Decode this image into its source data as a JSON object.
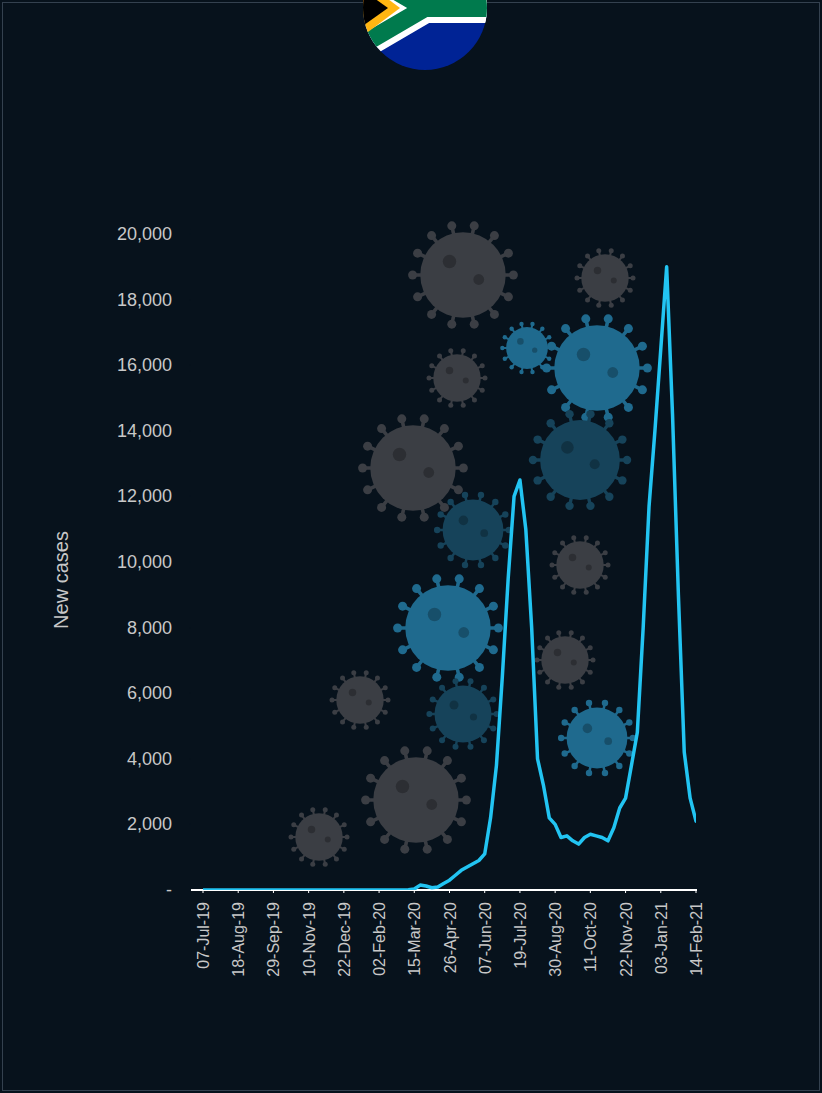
{
  "chart_data": {
    "type": "line",
    "y_label": "New cases",
    "color": "#22c4f2",
    "x": [
      "2019-07-07",
      "2020-03-01",
      "2020-03-08",
      "2020-03-15",
      "2020-03-22",
      "2020-03-29",
      "2020-04-05",
      "2020-04-12",
      "2020-04-19",
      "2020-04-26",
      "2020-05-03",
      "2020-05-10",
      "2020-05-17",
      "2020-05-24",
      "2020-05-31",
      "2020-06-07",
      "2020-06-14",
      "2020-06-21",
      "2020-06-28",
      "2020-07-05",
      "2020-07-12",
      "2020-07-19",
      "2020-07-26",
      "2020-08-02",
      "2020-08-09",
      "2020-08-16",
      "2020-08-23",
      "2020-08-30",
      "2020-09-06",
      "2020-09-13",
      "2020-09-20",
      "2020-09-27",
      "2020-10-04",
      "2020-10-11",
      "2020-10-18",
      "2020-10-25",
      "2020-11-01",
      "2020-11-08",
      "2020-11-15",
      "2020-11-22",
      "2020-11-29",
      "2020-12-06",
      "2020-12-13",
      "2020-12-20",
      "2020-12-27",
      "2021-01-03",
      "2021-01-10",
      "2021-01-17",
      "2021-01-24",
      "2021-01-31",
      "2021-02-07",
      "2021-02-14"
    ],
    "values": [
      0,
      0,
      5,
      30,
      150,
      120,
      70,
      90,
      200,
      300,
      450,
      600,
      700,
      800,
      900,
      1100,
      2200,
      3800,
      6500,
      9500,
      12000,
      12500,
      11000,
      8000,
      4000,
      3200,
      2200,
      2000,
      1600,
      1650,
      1500,
      1400,
      1600,
      1700,
      1650,
      1600,
      1500,
      1900,
      2500,
      2800,
      3800,
      4800,
      8000,
      11700,
      14000,
      16500,
      19000,
      14500,
      9000,
      4200,
      2800,
      2100
    ],
    "xlim": [
      "2019-07-07",
      "2021-02-14"
    ],
    "xticks": [
      {
        "value": "2019-07-07",
        "label": "07-Jul-19"
      },
      {
        "value": "2019-08-18",
        "label": "18-Aug-19"
      },
      {
        "value": "2019-09-29",
        "label": "29-Sep-19"
      },
      {
        "value": "2019-11-10",
        "label": "10-Nov-19"
      },
      {
        "value": "2019-12-22",
        "label": "22-Dec-19"
      },
      {
        "value": "2020-02-02",
        "label": "02-Feb-20"
      },
      {
        "value": "2020-03-15",
        "label": "15-Mar-20"
      },
      {
        "value": "2020-04-26",
        "label": "26-Apr-20"
      },
      {
        "value": "2020-06-07",
        "label": "07-Jun-20"
      },
      {
        "value": "2020-07-19",
        "label": "19-Jul-20"
      },
      {
        "value": "2020-08-30",
        "label": "30-Aug-20"
      },
      {
        "value": "2020-10-11",
        "label": "11-Oct-20"
      },
      {
        "value": "2020-11-22",
        "label": "22-Nov-20"
      },
      {
        "value": "2021-01-03",
        "label": "03-Jan-21"
      },
      {
        "value": "2021-02-14",
        "label": "14-Feb-21"
      }
    ],
    "ylim": [
      0,
      20000
    ],
    "yticks": [
      {
        "value": 0,
        "label": "-"
      },
      {
        "value": 2000,
        "label": "2,000"
      },
      {
        "value": 4000,
        "label": "4,000"
      },
      {
        "value": 6000,
        "label": "6,000"
      },
      {
        "value": 8000,
        "label": "8,000"
      },
      {
        "value": 10000,
        "label": "10,000"
      },
      {
        "value": 12000,
        "label": "12,000"
      },
      {
        "value": 14000,
        "label": "14,000"
      },
      {
        "value": 16000,
        "label": "16,000"
      },
      {
        "value": 18000,
        "label": "18,000"
      },
      {
        "value": 20000,
        "label": "20,000"
      }
    ],
    "grid": false
  }
}
